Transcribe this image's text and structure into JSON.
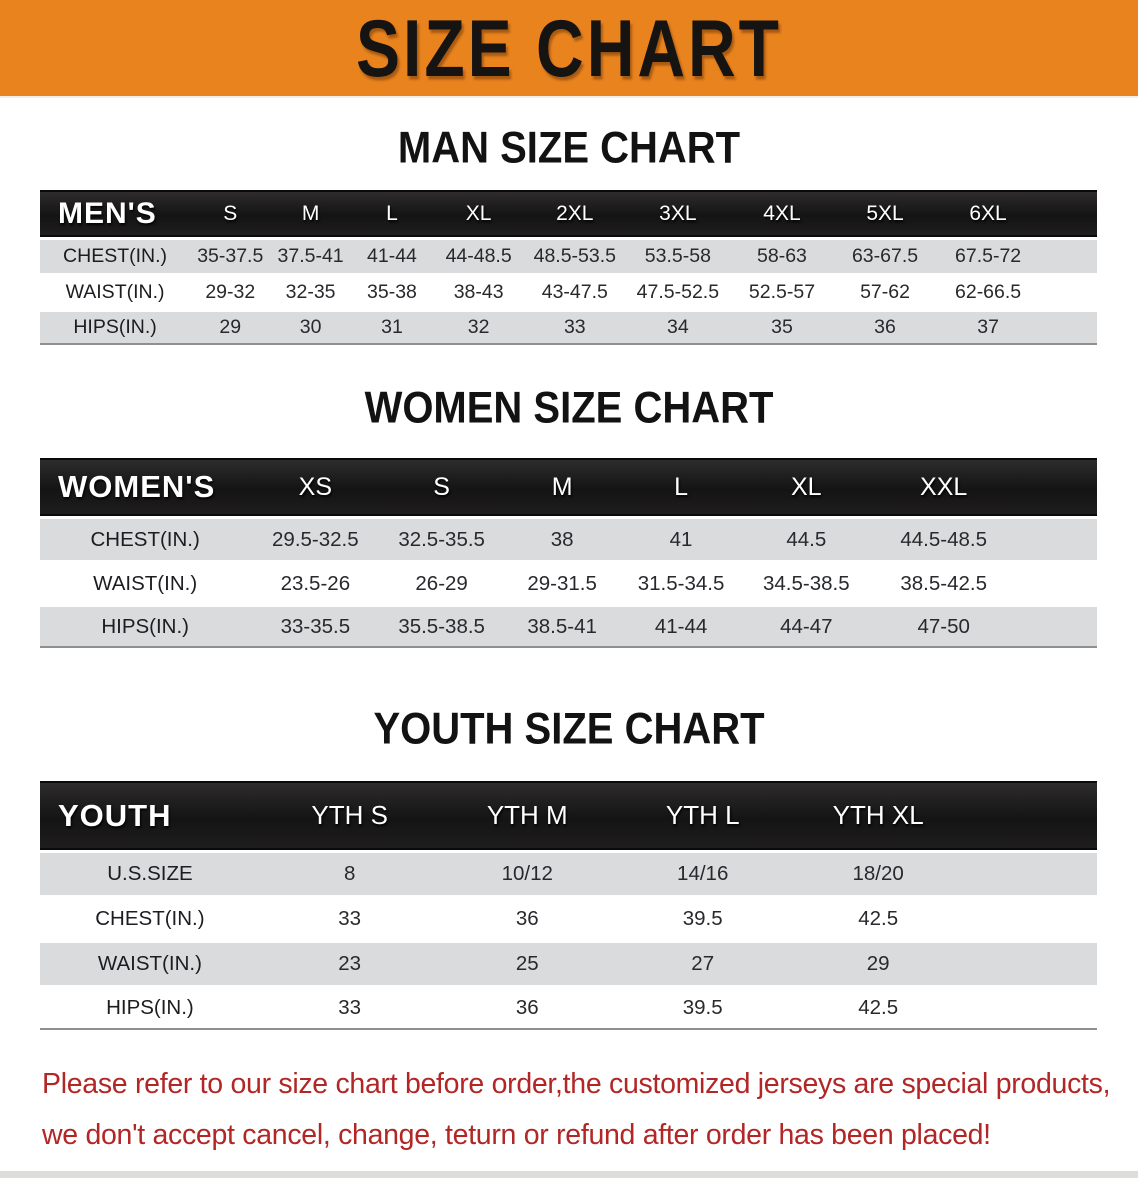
{
  "banner": {
    "title": "SIZE CHART",
    "bg_color": "#E8831E",
    "text_color": "#161413"
  },
  "colors": {
    "banner_bg": "#E8831E",
    "table_header_bg": "#1b1b1b",
    "row_alt_gray": "#dadbdc",
    "notice_red": "#b22626"
  },
  "sections": [
    {
      "heading": "MAN SIZE CHART",
      "table": {
        "header_label": "MEN'S",
        "columns": [
          "S",
          "M",
          "L",
          "XL",
          "2XL",
          "3XL",
          "4XL",
          "5XL",
          "6XL"
        ],
        "rows": [
          {
            "label": "CHEST(IN.)",
            "values": [
              "35-37.5",
              "37.5-41",
              "41-44",
              "44-48.5",
              "48.5-53.5",
              "53.5-58",
              "58-63",
              "63-67.5",
              "67.5-72"
            ]
          },
          {
            "label": "WAIST(IN.)",
            "values": [
              "29-32",
              "32-35",
              "35-38",
              "38-43",
              "43-47.5",
              "47.5-52.5",
              "52.5-57",
              "57-62",
              "62-66.5"
            ]
          },
          {
            "label": "HIPS(IN.)",
            "values": [
              "29",
              "30",
              "31",
              "32",
              "33",
              "34",
              "35",
              "36",
              "37"
            ]
          }
        ]
      }
    },
    {
      "heading": "WOMEN SIZE CHART",
      "table": {
        "header_label": "WOMEN'S",
        "columns": [
          "XS",
          "S",
          "M",
          "L",
          "XL",
          "XXL"
        ],
        "rows": [
          {
            "label": "CHEST(IN.)",
            "values": [
              "29.5-32.5",
              "32.5-35.5",
              "38",
              "41",
              "44.5",
              "44.5-48.5"
            ]
          },
          {
            "label": "WAIST(IN.)",
            "values": [
              "23.5-26",
              "26-29",
              "29-31.5",
              "31.5-34.5",
              "34.5-38.5",
              "38.5-42.5"
            ]
          },
          {
            "label": "HIPS(IN.)",
            "values": [
              "33-35.5",
              "35.5-38.5",
              "38.5-41",
              "41-44",
              "44-47",
              "47-50"
            ]
          }
        ]
      }
    },
    {
      "heading": "YOUTH SIZE CHART",
      "table": {
        "header_label": "YOUTH",
        "columns": [
          "YTH S",
          "YTH M",
          "YTH L",
          "YTH XL"
        ],
        "rows": [
          {
            "label": "U.S.SIZE",
            "values": [
              "8",
              "10/12",
              "14/16",
              "18/20"
            ]
          },
          {
            "label": "CHEST(IN.)",
            "values": [
              "33",
              "36",
              "39.5",
              "42.5"
            ]
          },
          {
            "label": "WAIST(IN.)",
            "values": [
              "23",
              "25",
              "27",
              "29"
            ]
          },
          {
            "label": "HIPS(IN.)",
            "values": [
              "33",
              "36",
              "39.5",
              "42.5"
            ]
          }
        ]
      }
    }
  ],
  "footer": {
    "line1": "Please refer to our size chart before order,the customized jerseys are special products,",
    "line2": "we don't accept cancel, change, teturn or refund after order has been placed!"
  }
}
